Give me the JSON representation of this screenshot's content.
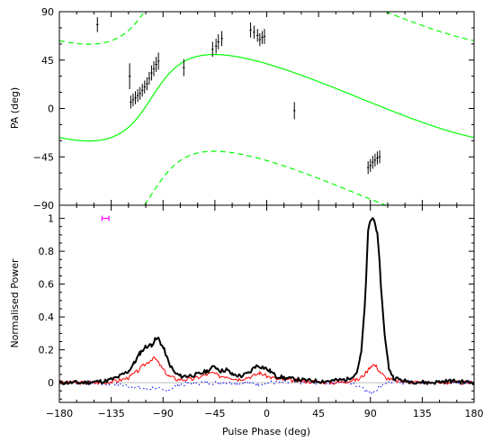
{
  "chart_data": [
    {
      "panel": "top",
      "type": "scatter",
      "ylabel": "PA (deg)",
      "xlim": [
        -180,
        180
      ],
      "ylim": [
        -90,
        90
      ],
      "yticks": [
        "90",
        "45",
        "0",
        "−45",
        "−90"
      ],
      "colors": {
        "points": "#000000",
        "rvm": "#00ff00"
      },
      "pa_points": [
        {
          "x": -147,
          "y": 78,
          "err": 7
        },
        {
          "x": -119,
          "y": 30,
          "err": 12
        },
        {
          "x": -118,
          "y": 6,
          "err": 6
        },
        {
          "x": -116,
          "y": 8,
          "err": 6
        },
        {
          "x": -114,
          "y": 10,
          "err": 6
        },
        {
          "x": -112,
          "y": 12,
          "err": 6
        },
        {
          "x": -110,
          "y": 14,
          "err": 6
        },
        {
          "x": -108,
          "y": 17,
          "err": 6
        },
        {
          "x": -106,
          "y": 20,
          "err": 6
        },
        {
          "x": -104,
          "y": 23,
          "err": 6
        },
        {
          "x": -102,
          "y": 28,
          "err": 6
        },
        {
          "x": -100,
          "y": 33,
          "err": 7
        },
        {
          "x": -98,
          "y": 37,
          "err": 7
        },
        {
          "x": -96,
          "y": 41,
          "err": 7
        },
        {
          "x": -94,
          "y": 44,
          "err": 8
        },
        {
          "x": -72,
          "y": 38,
          "err": 8
        },
        {
          "x": -47,
          "y": 55,
          "err": 7
        },
        {
          "x": -44,
          "y": 58,
          "err": 7
        },
        {
          "x": -42,
          "y": 62,
          "err": 7
        },
        {
          "x": -39,
          "y": 65,
          "err": 7
        },
        {
          "x": -14,
          "y": 73,
          "err": 7
        },
        {
          "x": -11,
          "y": 71,
          "err": 6
        },
        {
          "x": -8,
          "y": 68,
          "err": 6
        },
        {
          "x": -6,
          "y": 64,
          "err": 6
        },
        {
          "x": -4,
          "y": 66,
          "err": 6
        },
        {
          "x": -2,
          "y": 67,
          "err": 7
        },
        {
          "x": 24,
          "y": -2,
          "err": 8
        },
        {
          "x": 88,
          "y": -55,
          "err": 6
        },
        {
          "x": 90,
          "y": -53,
          "err": 6
        },
        {
          "x": 92,
          "y": -50,
          "err": 6
        },
        {
          "x": 94,
          "y": -48,
          "err": 6
        },
        {
          "x": 96,
          "y": -46,
          "err": 6
        },
        {
          "x": 98,
          "y": -45,
          "err": 6
        }
      ],
      "rvm": {
        "alpha_deg": 20,
        "beta_deg": 12,
        "phi0_deg": -100,
        "psi0_deg": 10
      }
    },
    {
      "panel": "bottom",
      "type": "line",
      "xlabel": "Pulse Phase (deg)",
      "ylabel": "Normalised Power",
      "xlim": [
        -180,
        180
      ],
      "ylim": [
        -0.12,
        1.08
      ],
      "xticks": [
        "−180",
        "−135",
        "−90",
        "−45",
        "0",
        "45",
        "90",
        "135",
        "180"
      ],
      "yticks": [
        "0",
        "0.2",
        "0.4",
        "0.6",
        "0.8",
        "1"
      ],
      "colors": {
        "total_intensity": "#000000",
        "linear": "#ff0000",
        "circular": "#0000ff",
        "resolution_bar": "#ff00ff"
      },
      "resolution_bar": {
        "x": -140,
        "y": 1,
        "halfwidth": 3
      },
      "total_intensity": [
        [
          -180,
          0.0
        ],
        [
          -160,
          0.0
        ],
        [
          -140,
          0.01
        ],
        [
          -130,
          0.03
        ],
        [
          -125,
          0.05
        ],
        [
          -120,
          0.07
        ],
        [
          -115,
          0.12
        ],
        [
          -110,
          0.18
        ],
        [
          -105,
          0.22
        ],
        [
          -100,
          0.23
        ],
        [
          -97,
          0.26
        ],
        [
          -94,
          0.27
        ],
        [
          -92,
          0.24
        ],
        [
          -89,
          0.2
        ],
        [
          -85,
          0.12
        ],
        [
          -80,
          0.06
        ],
        [
          -75,
          0.04
        ],
        [
          -70,
          0.04
        ],
        [
          -60,
          0.05
        ],
        [
          -52,
          0.07
        ],
        [
          -45,
          0.1
        ],
        [
          -40,
          0.07
        ],
        [
          -35,
          0.08
        ],
        [
          -30,
          0.05
        ],
        [
          -22,
          0.04
        ],
        [
          -15,
          0.06
        ],
        [
          -10,
          0.1
        ],
        [
          -6,
          0.1
        ],
        [
          -2,
          0.09
        ],
        [
          3,
          0.07
        ],
        [
          8,
          0.04
        ],
        [
          15,
          0.03
        ],
        [
          25,
          0.02
        ],
        [
          40,
          0.01
        ],
        [
          55,
          0.01
        ],
        [
          70,
          0.02
        ],
        [
          78,
          0.06
        ],
        [
          82,
          0.18
        ],
        [
          85,
          0.45
        ],
        [
          87,
          0.75
        ],
        [
          88,
          0.92
        ],
        [
          90,
          0.99
        ],
        [
          92,
          1.0
        ],
        [
          94,
          0.98
        ],
        [
          96,
          0.9
        ],
        [
          98,
          0.72
        ],
        [
          100,
          0.5
        ],
        [
          103,
          0.25
        ],
        [
          106,
          0.09
        ],
        [
          110,
          0.03
        ],
        [
          120,
          0.01
        ],
        [
          140,
          0.0
        ],
        [
          160,
          0.01
        ],
        [
          180,
          0.0
        ]
      ],
      "linear": [
        [
          -180,
          0.0
        ],
        [
          -145,
          0.0
        ],
        [
          -130,
          0.01
        ],
        [
          -120,
          0.03
        ],
        [
          -112,
          0.07
        ],
        [
          -106,
          0.11
        ],
        [
          -102,
          0.13
        ],
        [
          -99,
          0.15
        ],
        [
          -96,
          0.14
        ],
        [
          -93,
          0.11
        ],
        [
          -90,
          0.08
        ],
        [
          -85,
          0.04
        ],
        [
          -78,
          0.02
        ],
        [
          -65,
          0.02
        ],
        [
          -52,
          0.05
        ],
        [
          -46,
          0.06
        ],
        [
          -42,
          0.04
        ],
        [
          -35,
          0.04
        ],
        [
          -25,
          0.02
        ],
        [
          -12,
          0.04
        ],
        [
          -6,
          0.06
        ],
        [
          0,
          0.04
        ],
        [
          10,
          0.02
        ],
        [
          30,
          0.01
        ],
        [
          60,
          0.0
        ],
        [
          80,
          0.02
        ],
        [
          86,
          0.06
        ],
        [
          90,
          0.1
        ],
        [
          92,
          0.11
        ],
        [
          95,
          0.1
        ],
        [
          98,
          0.07
        ],
        [
          103,
          0.03
        ],
        [
          112,
          0.01
        ],
        [
          140,
          0.0
        ],
        [
          180,
          0.0
        ]
      ],
      "circular": [
        [
          -180,
          0.0
        ],
        [
          -150,
          0.0
        ],
        [
          -130,
          -0.01
        ],
        [
          -120,
          -0.02
        ],
        [
          -110,
          -0.03
        ],
        [
          -104,
          -0.04
        ],
        [
          -98,
          -0.03
        ],
        [
          -90,
          -0.05
        ],
        [
          -84,
          -0.04
        ],
        [
          -75,
          -0.01
        ],
        [
          -55,
          0.0
        ],
        [
          -40,
          0.0
        ],
        [
          -20,
          0.0
        ],
        [
          -8,
          -0.01
        ],
        [
          0,
          0.0
        ],
        [
          30,
          0.0
        ],
        [
          70,
          0.0
        ],
        [
          82,
          -0.02
        ],
        [
          87,
          -0.05
        ],
        [
          90,
          -0.06
        ],
        [
          93,
          -0.05
        ],
        [
          97,
          -0.03
        ],
        [
          103,
          0.0
        ],
        [
          130,
          0.0
        ],
        [
          180,
          0.0
        ]
      ]
    }
  ]
}
